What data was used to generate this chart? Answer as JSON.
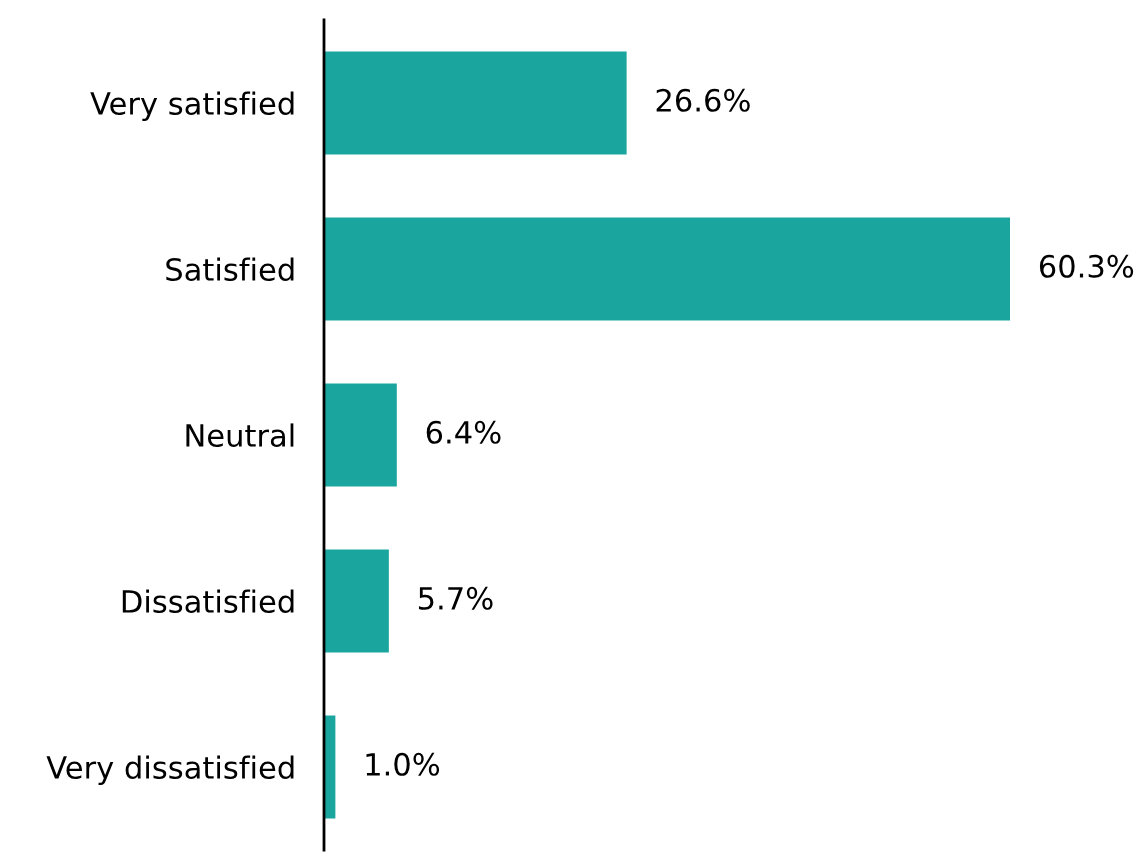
{
  "chart_data": {
    "type": "bar",
    "orientation": "horizontal",
    "categories": [
      "Very satisfied",
      "Satisfied",
      "Neutral",
      "Dissatisfied",
      "Very dissatisfied"
    ],
    "values": [
      26.6,
      60.3,
      6.4,
      5.7,
      1.0
    ],
    "value_labels": [
      "26.6%",
      "60.3%",
      "6.4%",
      "5.7%",
      "1.0%"
    ],
    "color": "#1aa59e",
    "grid": false,
    "legend": false
  }
}
